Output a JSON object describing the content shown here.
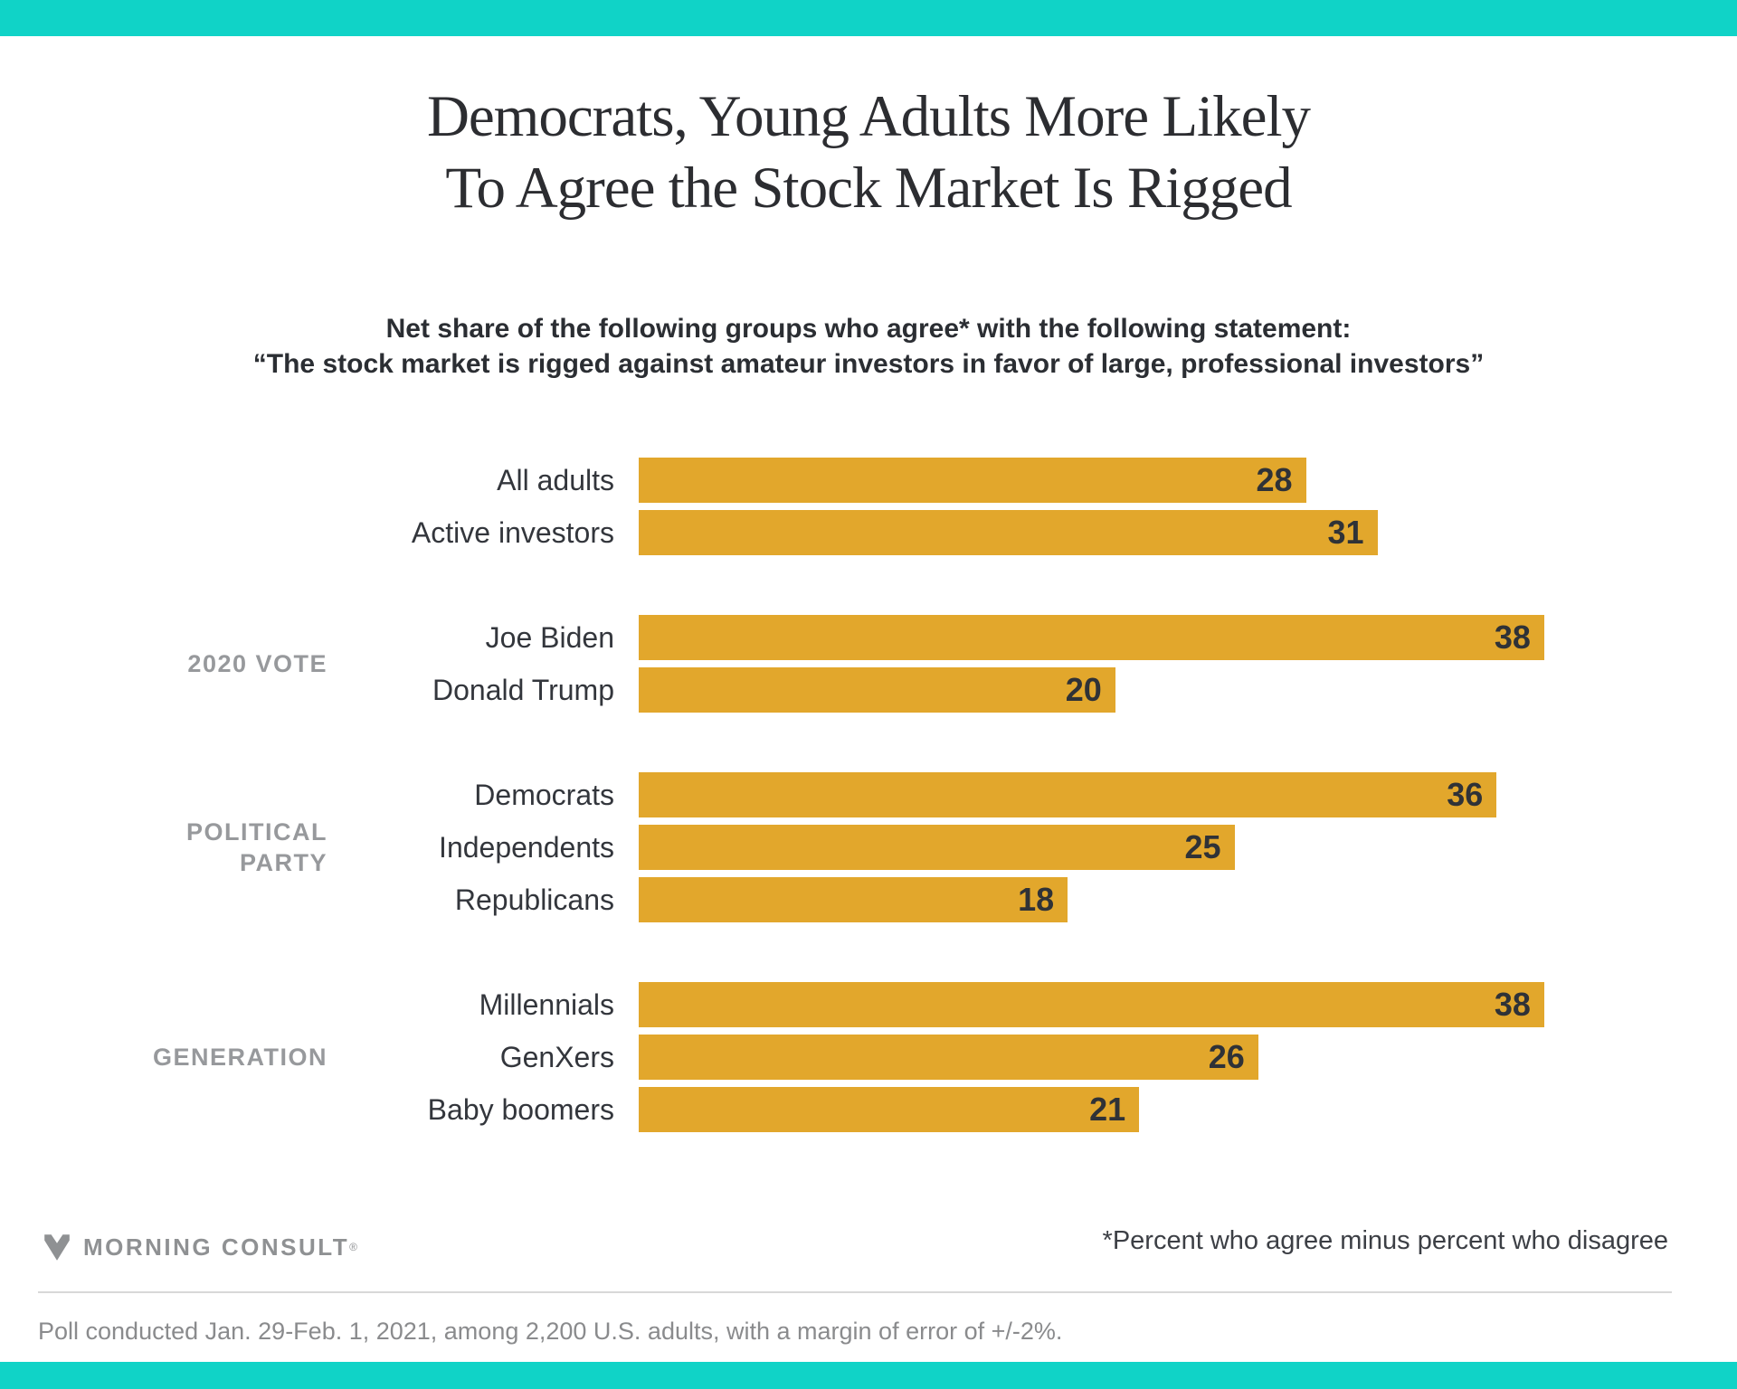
{
  "brand": {
    "top_bar_color": "#10d3c7",
    "accent_gold": "#e2a72c",
    "logo_text": "MORNING CONSULT",
    "logo_reg": "®"
  },
  "title": {
    "line1": "Democrats, Young Adults More Likely",
    "line2": "To Agree the Stock Market Is Rigged"
  },
  "subtitle": {
    "line1": "Net share of the following groups who agree* with the following statement:",
    "line2": "“The stock market is rigged against amateur investors in favor of large, professional investors”"
  },
  "chart_data": {
    "type": "bar",
    "orientation": "horizontal",
    "title": "Democrats, Young Adults More Likely To Agree the Stock Market Is Rigged",
    "subtitle": "Net share of the following groups who agree* with the following statement: “The stock market is rigged against amateur investors in favor of large, professional investors”",
    "unit": "net percent (agree minus disagree)",
    "xlim": [
      0,
      38
    ],
    "bar_color": "#e2a72c",
    "value_labels_inside": true,
    "grid": false,
    "groups": [
      {
        "label": "",
        "items": [
          {
            "category": "All adults",
            "value": 28
          },
          {
            "category": "Active investors",
            "value": 31
          }
        ]
      },
      {
        "label": "2020 VOTE",
        "items": [
          {
            "category": "Joe Biden",
            "value": 38
          },
          {
            "category": "Donald Trump",
            "value": 20
          }
        ]
      },
      {
        "label": "POLITICAL PARTY",
        "items": [
          {
            "category": "Democrats",
            "value": 36
          },
          {
            "category": "Independents",
            "value": 25
          },
          {
            "category": "Republicans",
            "value": 18
          }
        ]
      },
      {
        "label": "GENERATION",
        "items": [
          {
            "category": "Millennials",
            "value": 38
          },
          {
            "category": "GenXers",
            "value": 26
          },
          {
            "category": "Baby boomers",
            "value": 21
          }
        ]
      }
    ]
  },
  "footer": {
    "footnote_right": "*Percent who agree minus percent who disagree",
    "methodology": "Poll conducted Jan. 29-Feb. 1, 2021, among 2,200 U.S. adults, with a margin of error of +/-2%."
  }
}
